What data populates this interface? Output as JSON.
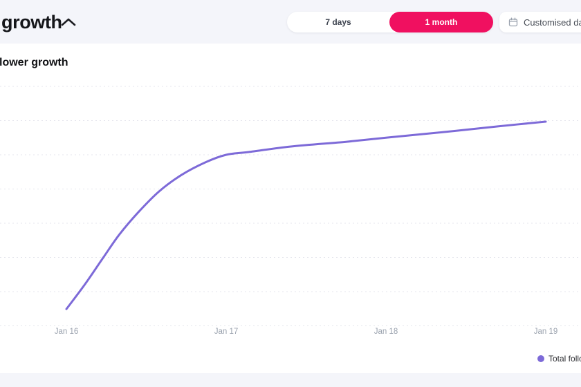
{
  "header": {
    "title": "growth",
    "collapse_icon": "chevron-up-icon",
    "date_range_toggle": {
      "options": [
        {
          "label": "7 days",
          "selected": false
        },
        {
          "label": "1 month",
          "selected": true
        }
      ]
    },
    "customised_date_button": {
      "label": "Customised date",
      "icon": "calendar-icon"
    }
  },
  "card": {
    "title": "lower growth"
  },
  "colors": {
    "background": "#f4f5fa",
    "card": "#ffffff",
    "accent_pink": "#f01060",
    "line_purple": "#7d6ad8",
    "gridline": "#e4e5ec",
    "axis_label": "#9aa2ae"
  },
  "chart_data": {
    "type": "line",
    "title": "lower growth",
    "x_tick_labels": [
      "Jan 16",
      "Jan 17",
      "Jan 18",
      "Jan 19"
    ],
    "y_axis": {
      "tick_labels_visible": false,
      "gridlines": 8,
      "range_grid_units": [
        0,
        7
      ],
      "note": "y-axis numeric labels are cropped out of the visible frame; values below are in gridline units"
    },
    "grid": "dotted-horizontal",
    "legend": {
      "position": "bottom-right",
      "entries": [
        {
          "label": "Total followers",
          "color": "#7d6ad8"
        }
      ]
    },
    "series": [
      {
        "name": "Total followers",
        "color": "#7d6ad8",
        "x_unit": "days since Jan 16",
        "y_unit": "gridline units",
        "points": [
          [
            0.0,
            0.49
          ],
          [
            0.12,
            1.24
          ],
          [
            0.23,
            1.99
          ],
          [
            0.33,
            2.66
          ],
          [
            0.45,
            3.32
          ],
          [
            0.58,
            3.93
          ],
          [
            0.72,
            4.41
          ],
          [
            0.87,
            4.78
          ],
          [
            1.0,
            5.0
          ],
          [
            1.14,
            5.08
          ],
          [
            1.4,
            5.24
          ],
          [
            1.75,
            5.38
          ],
          [
            2.0,
            5.5
          ],
          [
            2.44,
            5.7
          ],
          [
            2.7,
            5.83
          ],
          [
            3.0,
            5.97
          ]
        ]
      }
    ]
  }
}
